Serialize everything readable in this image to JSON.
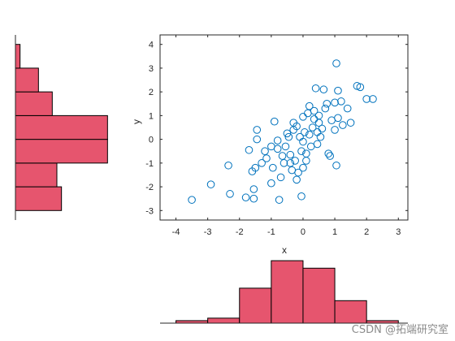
{
  "chart_data": [
    {
      "type": "scatter",
      "xlabel": "x",
      "ylabel": "y",
      "xlim": [
        -4.5,
        3.3
      ],
      "ylim": [
        -3.4,
        4.4
      ],
      "xticks": [
        "-4",
        "-3",
        "-2",
        "-1",
        "0",
        "1",
        "2",
        "3"
      ],
      "yticks": [
        "-3",
        "-2",
        "-1",
        "0",
        "1",
        "2",
        "3",
        "4"
      ],
      "marker": "open-circle",
      "marker_color": "#0072BD",
      "grid": false,
      "box": true,
      "points": [
        [
          -3.5,
          -2.55
        ],
        [
          -2.9,
          -1.9
        ],
        [
          -2.3,
          -2.3
        ],
        [
          -2.35,
          -1.1
        ],
        [
          -1.8,
          -2.45
        ],
        [
          -1.55,
          -2.5
        ],
        [
          -1.55,
          -2.1
        ],
        [
          -1.6,
          -1.35
        ],
        [
          -1.7,
          -0.45
        ],
        [
          -1.5,
          -1.2
        ],
        [
          -1.45,
          0.4
        ],
        [
          -1.45,
          0.0
        ],
        [
          -1.3,
          -1.0
        ],
        [
          -1.2,
          -0.5
        ],
        [
          -1.15,
          -0.8
        ],
        [
          -1.0,
          -1.85
        ],
        [
          -1.0,
          -0.3
        ],
        [
          -0.95,
          -1.2
        ],
        [
          -0.8,
          -0.4
        ],
        [
          -0.8,
          -0.05
        ],
        [
          -0.75,
          -2.55
        ],
        [
          -0.7,
          -1.6
        ],
        [
          -0.65,
          -0.7
        ],
        [
          -0.6,
          -1.0
        ],
        [
          -0.55,
          -0.3
        ],
        [
          -0.5,
          0.25
        ],
        [
          -0.45,
          0.1
        ],
        [
          -0.4,
          -0.65
        ],
        [
          -0.4,
          -1.0
        ],
        [
          -0.35,
          -1.3
        ],
        [
          -0.3,
          0.4
        ],
        [
          -0.3,
          0.7
        ],
        [
          -0.25,
          -0.9
        ],
        [
          -0.2,
          -1.7
        ],
        [
          -0.15,
          -1.4
        ],
        [
          -0.1,
          0.1
        ],
        [
          -0.05,
          -0.5
        ],
        [
          -0.05,
          -2.4
        ],
        [
          0.0,
          -1.2
        ],
        [
          0.0,
          -0.1
        ],
        [
          0.05,
          0.3
        ],
        [
          0.1,
          -0.6
        ],
        [
          0.15,
          1.1
        ],
        [
          0.2,
          0.2
        ],
        [
          0.2,
          1.4
        ],
        [
          0.25,
          -0.3
        ],
        [
          0.3,
          0.5
        ],
        [
          0.35,
          0.85
        ],
        [
          0.4,
          2.15
        ],
        [
          0.45,
          -0.2
        ],
        [
          0.45,
          0.3
        ],
        [
          0.5,
          1.0
        ],
        [
          0.55,
          0.1
        ],
        [
          0.6,
          0.45
        ],
        [
          0.65,
          2.1
        ],
        [
          0.7,
          1.3
        ],
        [
          0.75,
          1.5
        ],
        [
          0.8,
          -0.6
        ],
        [
          0.85,
          -0.7
        ],
        [
          0.9,
          0.8
        ],
        [
          1.0,
          0.4
        ],
        [
          1.0,
          1.55
        ],
        [
          1.05,
          3.2
        ],
        [
          1.05,
          -1.1
        ],
        [
          1.1,
          2.05
        ],
        [
          1.1,
          0.9
        ],
        [
          1.2,
          1.6
        ],
        [
          1.25,
          0.6
        ],
        [
          1.4,
          1.3
        ],
        [
          1.5,
          0.7
        ],
        [
          1.7,
          2.25
        ],
        [
          1.8,
          2.2
        ],
        [
          2.0,
          1.7
        ],
        [
          2.2,
          1.7
        ],
        [
          -0.9,
          0.75
        ],
        [
          0.0,
          0.95
        ],
        [
          -0.2,
          0.55
        ],
        [
          0.1,
          -0.9
        ],
        [
          0.35,
          1.2
        ],
        [
          0.5,
          0.7
        ]
      ]
    },
    {
      "type": "bar",
      "orientation": "vertical",
      "edges": [
        -4,
        -3,
        -2,
        -1,
        0,
        1,
        2,
        3
      ],
      "values": [
        1,
        2,
        14,
        25,
        22,
        9,
        1
      ],
      "ylim": [
        0,
        26
      ],
      "face_color": "#E6556E",
      "edge_color": "#000000"
    },
    {
      "type": "bar",
      "orientation": "horizontal",
      "edges": [
        -3,
        -2,
        -1,
        0,
        1,
        2,
        3,
        4
      ],
      "values": [
        10,
        9,
        20,
        20,
        8,
        5,
        1
      ],
      "xlim": [
        0,
        21
      ],
      "face_color": "#E6556E",
      "edge_color": "#000000"
    }
  ],
  "watermark": "CSDN @拓端研究室"
}
